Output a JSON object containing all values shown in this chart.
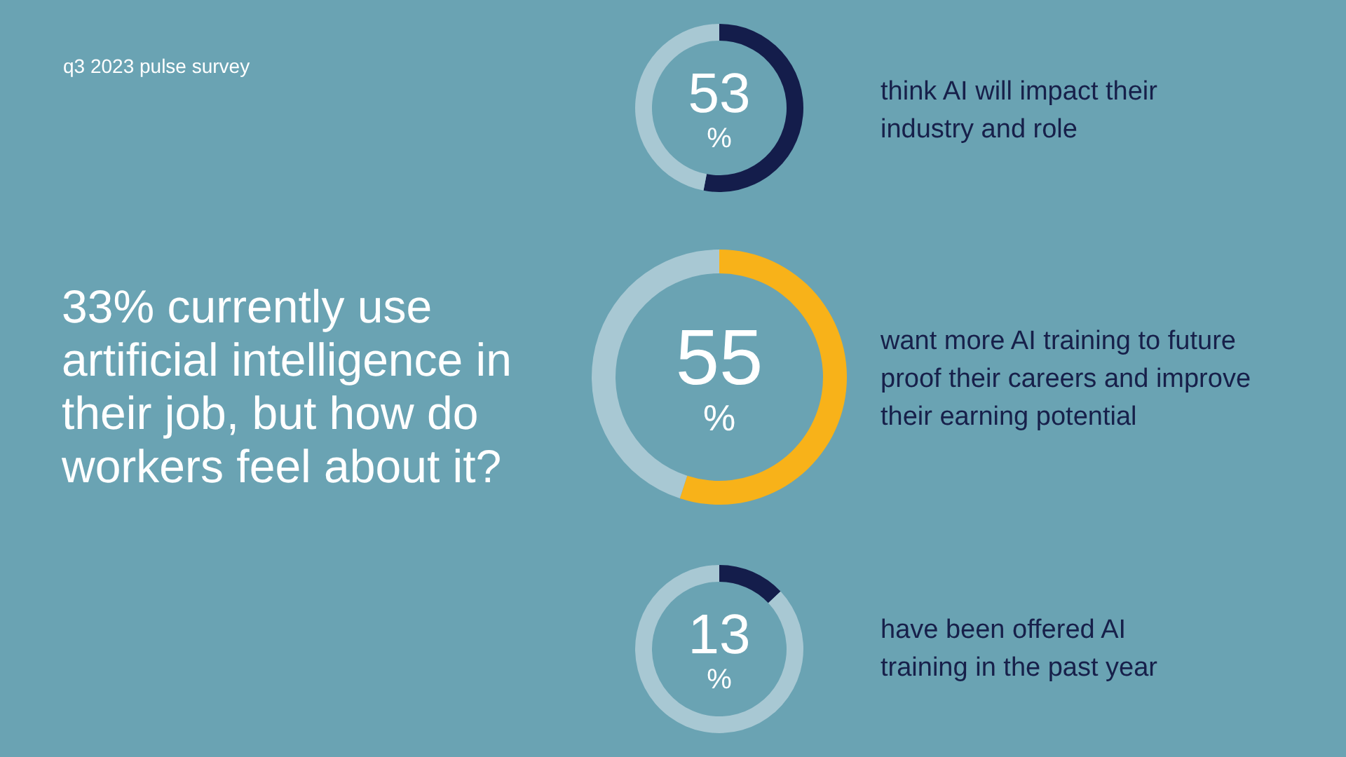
{
  "chart_data": [
    {
      "type": "other",
      "title": "33% currently use artificial intelligence in their job, but how do workers feel about it?",
      "subtitle": "q3 2023 pulse survey"
    },
    {
      "type": "donut",
      "categories": [
        null,
        null
      ],
      "values": [
        53,
        47
      ],
      "colors": [
        "#141d4b",
        "#a8c8d3"
      ],
      "value_labels": [
        "53 %",
        null
      ],
      "annotations": [
        "think AI will impact their industry and role"
      ]
    },
    {
      "type": "donut",
      "categories": [
        null,
        null
      ],
      "values": [
        55,
        45
      ],
      "colors": [
        "#f8b219",
        "#a8c8d3"
      ],
      "value_labels": [
        "55 %",
        null
      ],
      "annotations": [
        "want more AI training to future proof their careers and improve their earning potential"
      ]
    },
    {
      "type": "donut",
      "categories": [
        null,
        null
      ],
      "values": [
        13,
        87
      ],
      "colors": [
        "#141d4b",
        "#a8c8d3"
      ],
      "value_labels": [
        "13 %",
        null
      ],
      "annotations": [
        "have been offered AI training in the past year"
      ]
    }
  ]
}
